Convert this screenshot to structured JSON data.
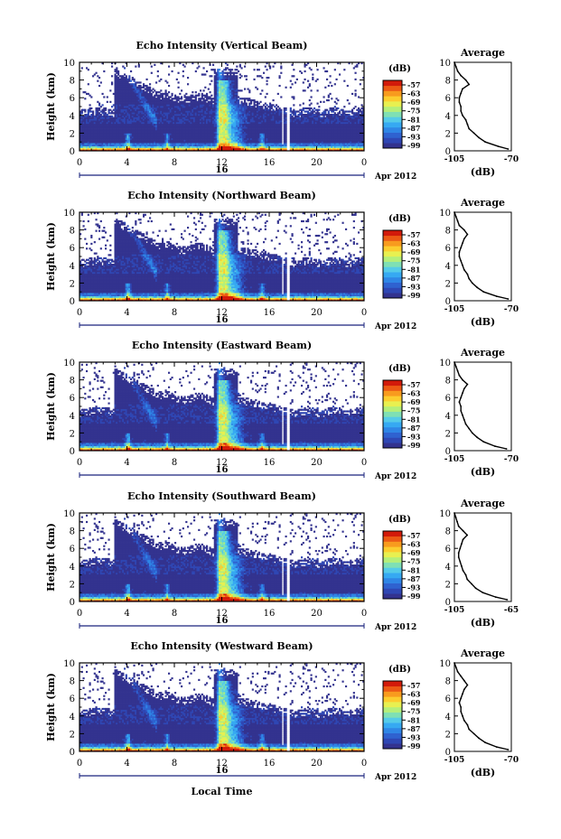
{
  "figure": {
    "xlabel_bottom": "Local Time",
    "colors": [
      "#33338f",
      "#2f47b4",
      "#2f62d0",
      "#2f86e6",
      "#36a9f2",
      "#55cbe8",
      "#7fe0b4",
      "#b4ef7a",
      "#e8f050",
      "#fccd2e",
      "#f89b1e",
      "#ec5a14",
      "#d21a0a"
    ],
    "axis_color": "#000000",
    "data_label_color": "#000000"
  },
  "chart_data": [
    {
      "type": "heatmap",
      "title": "Echo Intensity (Vertical Beam)",
      "ylabel": "Height (km)",
      "xlim": [
        0,
        24
      ],
      "ylim": [
        0,
        10
      ],
      "x_ticks": [
        "0",
        "4",
        "8",
        "12",
        "16",
        "20",
        "0"
      ],
      "y_ticks": [
        "0",
        "2",
        "4",
        "6",
        "8",
        "10"
      ],
      "date_day": "16",
      "date_month": "Apr 2012",
      "colorbar": {
        "unit": "(dB)",
        "ticks": [
          "-57",
          "-63",
          "-69",
          "-75",
          "-81",
          "-87",
          "-93",
          "-99"
        ]
      },
      "average_profile": {
        "title": "Average",
        "xlabel": "(dB)",
        "xlim": [
          -105,
          -70
        ],
        "x_ticks": [
          "-105",
          "-70"
        ],
        "y_ticks": [
          "0",
          "2",
          "4",
          "6",
          "8",
          "10"
        ],
        "heights": [
          0.2,
          0.5,
          1.0,
          1.5,
          2.0,
          2.5,
          3.0,
          3.5,
          4.0,
          4.5,
          5.0,
          5.5,
          6.0,
          6.5,
          7.0,
          7.5,
          8.0,
          8.5,
          9.0,
          9.5,
          10.0
        ],
        "values": [
          -72,
          -78,
          -86,
          -90,
          -93,
          -96,
          -97,
          -98,
          -100,
          -101,
          -101,
          -102,
          -102,
          -101,
          -100,
          -96,
          -98,
          -101,
          -103,
          -104,
          -105
        ]
      }
    },
    {
      "type": "heatmap",
      "title": "Echo Intensity (Northward Beam)",
      "ylabel": "Height (km)",
      "xlim": [
        0,
        24
      ],
      "ylim": [
        0,
        10
      ],
      "x_ticks": [
        "0",
        "4",
        "8",
        "12",
        "16",
        "20",
        "0"
      ],
      "y_ticks": [
        "0",
        "2",
        "4",
        "6",
        "8",
        "10"
      ],
      "date_day": "16",
      "date_month": "Apr 2012",
      "colorbar": {
        "unit": "(dB)",
        "ticks": [
          "-57",
          "-63",
          "-69",
          "-75",
          "-81",
          "-87",
          "-93",
          "-99"
        ]
      },
      "average_profile": {
        "title": "Average",
        "xlabel": "(dB)",
        "xlim": [
          -105,
          -70
        ],
        "x_ticks": [
          "-105",
          "-70"
        ],
        "y_ticks": [
          "0",
          "2",
          "4",
          "6",
          "8",
          "10"
        ],
        "heights": [
          0.2,
          0.5,
          1.0,
          1.5,
          2.0,
          2.5,
          3.0,
          3.5,
          4.0,
          4.5,
          5.0,
          5.5,
          6.0,
          6.5,
          7.0,
          7.5,
          8.0,
          8.5,
          9.0,
          9.5,
          10.0
        ],
        "values": [
          -72,
          -79,
          -87,
          -91,
          -94,
          -96,
          -97,
          -99,
          -100,
          -101,
          -102,
          -102,
          -101,
          -100,
          -99,
          -97,
          -99,
          -102,
          -103,
          -104,
          -105
        ]
      }
    },
    {
      "type": "heatmap",
      "title": "Echo Intensity (Eastward Beam)",
      "ylabel": "Height (km)",
      "xlim": [
        0,
        24
      ],
      "ylim": [
        0,
        10
      ],
      "x_ticks": [
        "0",
        "4",
        "8",
        "12",
        "16",
        "20",
        "0"
      ],
      "y_ticks": [
        "0",
        "2",
        "4",
        "6",
        "8",
        "10"
      ],
      "date_day": "16",
      "date_month": "Apr 2012",
      "colorbar": {
        "unit": "(dB)",
        "ticks": [
          "-57",
          "-63",
          "-69",
          "-75",
          "-81",
          "-87",
          "-93",
          "-99"
        ]
      },
      "average_profile": {
        "title": "Average",
        "xlabel": "(dB)",
        "xlim": [
          -105,
          -70
        ],
        "x_ticks": [
          "-105",
          "-70"
        ],
        "y_ticks": [
          "0",
          "2",
          "4",
          "6",
          "8",
          "10"
        ],
        "heights": [
          0.2,
          0.5,
          1.0,
          1.5,
          2.0,
          2.5,
          3.0,
          3.5,
          4.0,
          4.5,
          5.0,
          5.5,
          6.0,
          6.5,
          7.0,
          7.5,
          8.0,
          8.5,
          9.0,
          9.5,
          10.0
        ],
        "values": [
          -73,
          -80,
          -87,
          -91,
          -94,
          -96,
          -98,
          -99,
          -100,
          -101,
          -101,
          -102,
          -101,
          -100,
          -99,
          -97,
          -100,
          -102,
          -103,
          -104,
          -105
        ]
      }
    },
    {
      "type": "heatmap",
      "title": "Echo Intensity (Southward Beam)",
      "ylabel": "Height (km)",
      "xlim": [
        0,
        24
      ],
      "ylim": [
        0,
        10
      ],
      "x_ticks": [
        "0",
        "4",
        "8",
        "12",
        "16",
        "20",
        "0"
      ],
      "y_ticks": [
        "0",
        "2",
        "4",
        "6",
        "8",
        "10"
      ],
      "date_day": "16",
      "date_month": "Apr 2012",
      "colorbar": {
        "unit": "(dB)",
        "ticks": [
          "-57",
          "-63",
          "-69",
          "-75",
          "-81",
          "-87",
          "-93",
          "-99"
        ]
      },
      "average_profile": {
        "title": "Average",
        "xlabel": "(dB)",
        "xlim": [
          -105,
          -65
        ],
        "x_ticks": [
          "-105",
          "-65"
        ],
        "y_ticks": [
          "0",
          "2",
          "4",
          "6",
          "8",
          "10"
        ],
        "heights": [
          0.2,
          0.5,
          1.0,
          1.5,
          2.0,
          2.5,
          3.0,
          3.5,
          4.0,
          4.5,
          5.0,
          5.5,
          6.0,
          6.5,
          7.0,
          7.5,
          8.0,
          8.5,
          9.0,
          9.5,
          10.0
        ],
        "values": [
          -68,
          -76,
          -85,
          -90,
          -93,
          -96,
          -97,
          -99,
          -100,
          -101,
          -102,
          -102,
          -101,
          -100,
          -99,
          -96,
          -99,
          -102,
          -103,
          -104,
          -105
        ]
      }
    },
    {
      "type": "heatmap",
      "title": "Echo Intensity (Westward Beam)",
      "ylabel": "Height (km)",
      "xlim": [
        0,
        24
      ],
      "ylim": [
        0,
        10
      ],
      "x_ticks": [
        "0",
        "4",
        "8",
        "12",
        "16",
        "20",
        "0"
      ],
      "y_ticks": [
        "0",
        "2",
        "4",
        "6",
        "8",
        "10"
      ],
      "date_day": "16",
      "date_month": "Apr 2012",
      "colorbar": {
        "unit": "(dB)",
        "ticks": [
          "-57",
          "-63",
          "-69",
          "-75",
          "-81",
          "-87",
          "-93",
          "-99"
        ]
      },
      "average_profile": {
        "title": "Average",
        "xlabel": "(dB)",
        "xlim": [
          -105,
          -70
        ],
        "x_ticks": [
          "-105",
          "-70"
        ],
        "y_ticks": [
          "0",
          "2",
          "4",
          "6",
          "8",
          "10"
        ],
        "heights": [
          0.2,
          0.5,
          1.0,
          1.5,
          2.0,
          2.5,
          3.0,
          3.5,
          4.0,
          4.5,
          5.0,
          5.5,
          6.0,
          6.5,
          7.0,
          7.5,
          8.0,
          8.5,
          9.0,
          9.5,
          10.0
        ],
        "values": [
          -72,
          -79,
          -86,
          -90,
          -93,
          -96,
          -97,
          -99,
          -100,
          -101,
          -101,
          -102,
          -101,
          -100,
          -99,
          -97,
          -99,
          -101,
          -103,
          -104,
          -105
        ]
      }
    }
  ]
}
